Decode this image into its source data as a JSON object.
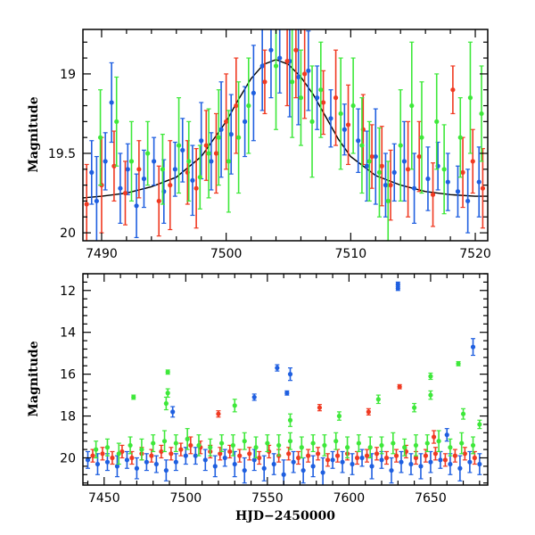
{
  "chart_data": [
    {
      "type": "scatter",
      "panel": "top",
      "title": "",
      "xlabel": "",
      "ylabel": "Magnitude",
      "xlim": [
        7488.5,
        7521.0
      ],
      "ylim": [
        20.05,
        18.72
      ],
      "y_inverted": true,
      "x_ticks": [
        7490,
        7500,
        7510,
        7520
      ],
      "y_ticks": [
        19,
        19.5,
        20
      ],
      "y_tick_labels": [
        "19",
        "19.5",
        "20"
      ],
      "grid": false,
      "legend": "none",
      "model_curve": {
        "name": "",
        "x": [
          7488.5,
          7490,
          7492,
          7494,
          7496,
          7498,
          7500,
          7501,
          7502,
          7503,
          7504,
          7505,
          7506,
          7507,
          7508,
          7509,
          7510,
          7512,
          7514,
          7516,
          7518,
          7520,
          7521
        ],
        "y": [
          19.78,
          19.77,
          19.75,
          19.71,
          19.65,
          19.52,
          19.3,
          19.16,
          19.03,
          18.94,
          18.91,
          18.94,
          19.02,
          19.13,
          19.27,
          19.41,
          19.52,
          19.64,
          19.7,
          19.74,
          19.76,
          19.77,
          19.77
        ]
      },
      "series": [
        {
          "color": "#1f5fe0",
          "x": [
            7489.2,
            7489.6,
            7490.3,
            7490.8,
            7491.5,
            7492.1,
            7492.8,
            7493.4,
            7494.2,
            7495.0,
            7495.9,
            7496.5,
            7497.3,
            7498.0,
            7498.8,
            7499.6,
            7500.4,
            7501.5,
            7502.2,
            7502.9,
            7503.6,
            7504.3,
            7505.1,
            7505.8,
            7506.6,
            7507.3,
            7508.4,
            7509.5,
            7510.6,
            7511.3,
            7512.0,
            7512.8,
            7513.5,
            7514.3,
            7515.1,
            7516.2,
            7517.0,
            7517.8,
            7518.6,
            7519.4,
            7520.3
          ],
          "y": [
            19.62,
            19.8,
            19.55,
            19.18,
            19.72,
            19.6,
            19.83,
            19.66,
            19.55,
            19.74,
            19.6,
            19.48,
            19.67,
            19.42,
            19.55,
            19.35,
            19.38,
            19.3,
            19.12,
            18.95,
            18.85,
            18.9,
            18.92,
            19.02,
            18.98,
            19.15,
            19.28,
            19.35,
            19.42,
            19.58,
            19.52,
            19.7,
            19.62,
            19.55,
            19.72,
            19.66,
            19.58,
            19.68,
            19.74,
            19.8,
            19.68
          ],
          "err": [
            0.2,
            0.28,
            0.18,
            0.25,
            0.22,
            0.16,
            0.2,
            0.18,
            0.15,
            0.2,
            0.17,
            0.2,
            0.22,
            0.24,
            0.18,
            0.3,
            0.25,
            0.22,
            0.3,
            0.28,
            0.3,
            0.22,
            0.35,
            0.3,
            0.25,
            0.2,
            0.18,
            0.16,
            0.2,
            0.22,
            0.3,
            0.2,
            0.18,
            0.25,
            0.22,
            0.2,
            0.15,
            0.18,
            0.16,
            0.2,
            0.22
          ]
        },
        {
          "color": "#f03a22",
          "x": [
            7488.8,
            7490.0,
            7491.0,
            7491.9,
            7493.0,
            7494.6,
            7495.5,
            7496.9,
            7497.6,
            7498.4,
            7499.2,
            7500.0,
            7500.8,
            7503.1,
            7504.9,
            7505.6,
            7506.3,
            7507.8,
            7508.8,
            7509.8,
            7511.0,
            7511.7,
            7512.5,
            7513.2,
            7514.6,
            7515.5,
            7516.6,
            7518.2,
            7519.0,
            7519.8,
            7520.6
          ],
          "y": [
            19.82,
            19.7,
            19.58,
            19.75,
            19.6,
            19.8,
            19.7,
            19.62,
            19.72,
            19.45,
            19.5,
            19.3,
            19.2,
            19.05,
            18.92,
            18.85,
            19.0,
            19.18,
            19.15,
            19.32,
            19.35,
            19.52,
            19.58,
            19.7,
            19.6,
            19.52,
            19.76,
            19.1,
            19.62,
            19.55,
            19.72
          ],
          "err": [
            0.25,
            0.3,
            0.22,
            0.2,
            0.18,
            0.22,
            0.28,
            0.2,
            0.25,
            0.22,
            0.25,
            0.3,
            0.3,
            0.2,
            0.28,
            0.3,
            0.28,
            0.2,
            0.3,
            0.25,
            0.22,
            0.2,
            0.25,
            0.22,
            0.3,
            0.22,
            0.2,
            0.15,
            0.22,
            0.2,
            0.25
          ]
        },
        {
          "color": "#3ee83a",
          "x": [
            7489.9,
            7491.2,
            7492.4,
            7493.7,
            7494.9,
            7496.2,
            7497.0,
            7497.9,
            7498.6,
            7499.4,
            7500.2,
            7501.0,
            7501.8,
            7504.0,
            7505.3,
            7506.0,
            7506.9,
            7507.6,
            7509.2,
            7510.2,
            7510.9,
            7511.5,
            7512.3,
            7513.0,
            7514.0,
            7514.9,
            7515.7,
            7516.9,
            7517.5,
            7518.8,
            7519.6,
            7520.5
          ],
          "y": [
            19.4,
            19.3,
            19.55,
            19.5,
            19.6,
            19.45,
            19.55,
            19.65,
            19.5,
            19.4,
            19.55,
            19.4,
            19.2,
            18.95,
            19.05,
            19.15,
            19.3,
            19.1,
            19.25,
            19.2,
            19.45,
            19.55,
            19.62,
            19.8,
            19.45,
            19.2,
            19.4,
            19.3,
            19.6,
            19.4,
            19.15,
            19.25
          ],
          "err": [
            0.3,
            0.28,
            0.25,
            0.2,
            0.22,
            0.3,
            0.25,
            0.2,
            0.28,
            0.3,
            0.32,
            0.35,
            0.3,
            0.4,
            0.35,
            0.3,
            0.35,
            0.3,
            0.35,
            0.3,
            0.3,
            0.25,
            0.28,
            0.25,
            0.35,
            0.4,
            0.35,
            0.3,
            0.28,
            0.25,
            0.35,
            0.3
          ]
        }
      ]
    },
    {
      "type": "scatter",
      "panel": "bottom",
      "title": "",
      "xlabel": "HJD−2450000",
      "ylabel": "Magnitude",
      "xlim": [
        7437,
        7685
      ],
      "ylim": [
        21.3,
        11.2
      ],
      "y_inverted": true,
      "x_ticks": [
        7450,
        7500,
        7550,
        7600,
        7650
      ],
      "y_ticks": [
        12,
        14,
        16,
        18,
        20
      ],
      "y_tick_labels": [
        "12",
        "14",
        "16",
        "18",
        "20"
      ],
      "grid": false,
      "legend": "none",
      "series": [
        {
          "color": "#1f5fe0",
          "x": [
            7440,
            7446,
            7452,
            7458,
            7464,
            7470,
            7476,
            7482,
            7488,
            7494,
            7500,
            7506,
            7512,
            7518,
            7524,
            7530,
            7536,
            7542,
            7548,
            7554,
            7560,
            7566,
            7572,
            7578,
            7584,
            7590,
            7596,
            7602,
            7608,
            7614,
            7620,
            7626,
            7632,
            7638,
            7644,
            7650,
            7656,
            7662,
            7668,
            7674,
            7680,
            7542,
            7556,
            7562,
            7564,
            7492,
            7630,
            7630,
            7676,
            7660
          ],
          "y": [
            20.1,
            20.3,
            20.2,
            20.4,
            20.1,
            20.5,
            20.2,
            20.3,
            20.6,
            20.2,
            19.9,
            19.9,
            20.1,
            20.4,
            20.0,
            20.3,
            20.6,
            20.1,
            20.5,
            20.3,
            20.8,
            20.2,
            20.6,
            20.4,
            20.7,
            20.1,
            20.2,
            20.3,
            20.0,
            20.4,
            20.1,
            20.6,
            20.2,
            20.3,
            20.4,
            20.2,
            20.1,
            20.3,
            20.5,
            20.2,
            20.3,
            17.1,
            15.7,
            16.9,
            16.0,
            17.8,
            11.7,
            11.9,
            14.7,
            18.9
          ],
          "err": [
            0.4,
            0.5,
            0.4,
            0.5,
            0.4,
            0.5,
            0.4,
            0.4,
            0.5,
            0.4,
            0.4,
            0.4,
            0.5,
            0.5,
            0.4,
            0.6,
            0.6,
            0.5,
            0.6,
            0.5,
            0.7,
            0.5,
            0.6,
            0.5,
            0.7,
            0.4,
            0.5,
            0.5,
            0.4,
            0.6,
            0.4,
            0.6,
            0.5,
            0.5,
            0.6,
            0.5,
            0.4,
            0.5,
            0.6,
            0.5,
            0.5,
            0.15,
            0.15,
            0.1,
            0.3,
            0.25,
            0.1,
            0.1,
            0.4,
            0.3
          ]
        },
        {
          "color": "#f03a22",
          "x": [
            7443,
            7449,
            7455,
            7461,
            7467,
            7473,
            7479,
            7485,
            7491,
            7497,
            7503,
            7509,
            7515,
            7521,
            7527,
            7533,
            7539,
            7545,
            7551,
            7557,
            7563,
            7569,
            7575,
            7581,
            7587,
            7593,
            7599,
            7605,
            7611,
            7617,
            7623,
            7629,
            7635,
            7641,
            7647,
            7653,
            7659,
            7665,
            7671,
            7677,
            7520,
            7582,
            7612,
            7631,
            7652
          ],
          "y": [
            19.9,
            19.8,
            20.0,
            19.7,
            20.0,
            19.8,
            19.9,
            19.7,
            19.8,
            19.6,
            19.4,
            19.5,
            19.7,
            19.8,
            19.7,
            19.9,
            19.8,
            20.0,
            19.7,
            19.9,
            19.8,
            20.0,
            19.9,
            19.8,
            20.1,
            19.9,
            19.8,
            20.0,
            19.9,
            19.8,
            20.0,
            19.9,
            19.7,
            20.0,
            19.9,
            19.8,
            20.1,
            19.9,
            19.8,
            20.0,
            17.9,
            17.6,
            17.8,
            16.6,
            19.0
          ],
          "err": [
            0.3,
            0.3,
            0.3,
            0.3,
            0.3,
            0.3,
            0.3,
            0.3,
            0.3,
            0.3,
            0.4,
            0.3,
            0.3,
            0.3,
            0.3,
            0.3,
            0.3,
            0.3,
            0.3,
            0.3,
            0.3,
            0.3,
            0.3,
            0.3,
            0.3,
            0.3,
            0.3,
            0.3,
            0.3,
            0.3,
            0.3,
            0.3,
            0.3,
            0.3,
            0.3,
            0.3,
            0.3,
            0.3,
            0.3,
            0.3,
            0.15,
            0.15,
            0.15,
            0.1,
            0.3
          ]
        },
        {
          "color": "#3ee83a",
          "x": [
            7445,
            7452,
            7459,
            7466,
            7473,
            7480,
            7487,
            7494,
            7501,
            7508,
            7515,
            7522,
            7529,
            7536,
            7543,
            7550,
            7557,
            7564,
            7571,
            7578,
            7585,
            7592,
            7599,
            7606,
            7613,
            7620,
            7627,
            7634,
            7641,
            7648,
            7655,
            7662,
            7669,
            7676,
            7468,
            7489,
            7489,
            7488,
            7530,
            7564,
            7594,
            7618,
            7640,
            7650,
            7650,
            7667,
            7670,
            7680
          ],
          "y": [
            19.6,
            19.5,
            19.8,
            19.4,
            19.6,
            19.3,
            19.2,
            19.3,
            19.1,
            19.4,
            19.5,
            19.3,
            19.4,
            19.2,
            19.5,
            19.3,
            19.4,
            19.2,
            19.5,
            19.3,
            19.4,
            19.2,
            19.5,
            19.3,
            19.5,
            19.4,
            19.3,
            19.5,
            19.4,
            19.3,
            19.2,
            19.5,
            19.3,
            19.4,
            17.1,
            15.9,
            16.9,
            17.4,
            17.5,
            18.2,
            18.0,
            17.2,
            17.6,
            16.1,
            17.0,
            15.5,
            17.9,
            18.4
          ],
          "err": [
            0.4,
            0.4,
            0.5,
            0.4,
            0.5,
            0.4,
            0.5,
            0.4,
            0.5,
            0.5,
            0.4,
            0.4,
            0.5,
            0.4,
            0.5,
            0.4,
            0.5,
            0.4,
            0.5,
            0.4,
            0.5,
            0.4,
            0.5,
            0.4,
            0.5,
            0.4,
            0.5,
            0.4,
            0.5,
            0.4,
            0.5,
            0.4,
            0.5,
            0.4,
            0.1,
            0.1,
            0.2,
            0.3,
            0.3,
            0.3,
            0.2,
            0.2,
            0.2,
            0.15,
            0.2,
            0.1,
            0.25,
            0.2
          ]
        }
      ]
    }
  ]
}
